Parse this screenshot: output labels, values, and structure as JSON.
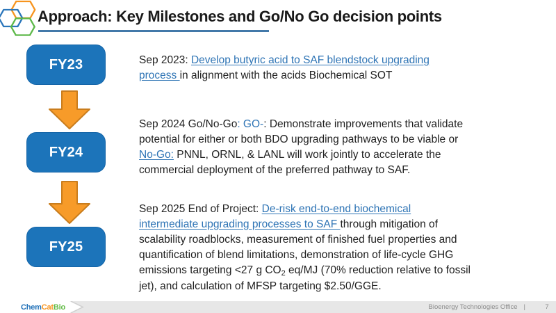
{
  "header": {
    "title": "Approach: Key Milestones and Go/No Go decision points",
    "logo_icon": "chemcatbio-hexagons"
  },
  "timeline": {
    "boxes": [
      {
        "label": "FY23"
      },
      {
        "label": "FY24"
      },
      {
        "label": "FY25"
      }
    ],
    "arrow_icon": "down-block-arrow"
  },
  "milestones": [
    {
      "segments": [
        {
          "style": "plain",
          "text": "Sep 2023: "
        },
        {
          "style": "link",
          "text": "Develop butyric acid to SAF blendstock upgrading\nprocess "
        },
        {
          "style": "plain",
          "text": "in alignment with the acids Biochemical SOT"
        }
      ]
    },
    {
      "segments": [
        {
          "style": "plain",
          "text": "Sep 2024 Go/No-Go"
        },
        {
          "style": "blue",
          "text": ": GO-"
        },
        {
          "style": "plain",
          "text": ": Demonstrate improvements that validate\npotential for either or both BDO upgrading pathways to be viable or\n"
        },
        {
          "style": "link",
          "text": "No-Go:"
        },
        {
          "style": "plain",
          "text": " PNNL, ORNL, & LANL will work jointly to accelerate the\ncommercial deployment of the preferred pathway to SAF."
        }
      ]
    },
    {
      "segments": [
        {
          "style": "plain",
          "text": "Sep 2025 End of Project: "
        },
        {
          "style": "link",
          "text": "De-risk end-to-end biochemical\nintermediate upgrading processes to SAF "
        },
        {
          "style": "plain",
          "text": "through mitigation of\nscalability roadblocks, measurement of finished fuel properties and\nquantification of blend limitations, demonstration of life-cycle GHG\nemissions targeting <27 g CO"
        },
        {
          "style": "sub",
          "text": "2"
        },
        {
          "style": "plain",
          "text": " eq/MJ (70% reduction relative to fossil\njet), and calculation of MFSP targeting $2.50/GGE."
        }
      ]
    },
    {
      "note": "milestone link color",
      "link_color": "#2E74B5"
    }
  ],
  "footer": {
    "logo": {
      "chem": "Chem",
      "cat": "Cat",
      "bio": "Bio"
    },
    "office_label": "Bioenergy Technologies Office",
    "separator": "|",
    "page_number": "7"
  },
  "colors": {
    "box_blue": "#1C74BA",
    "arrow_orange": "#F79B29",
    "arrow_border": "#C97D1D",
    "link_blue": "#2E74B5",
    "title_rule_blue": "#4379A9",
    "footer_gray": "#E7E7E7",
    "logo_hex_blue": "#2B76BB",
    "logo_hex_orange": "#F7941E",
    "logo_hex_green": "#5CB848"
  }
}
